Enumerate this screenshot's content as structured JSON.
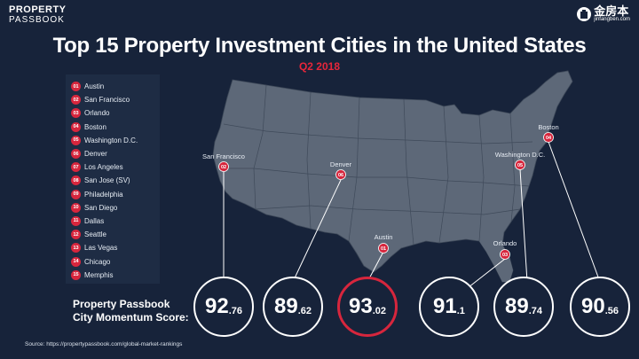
{
  "brand": {
    "line1": "PROPERTY",
    "line2": "PASSBOOK"
  },
  "partner": {
    "name": "金房本",
    "url": "jinfangben.com",
    "icon": "building-icon"
  },
  "title": "Top 15 Property Investment Cities in the United States",
  "subtitle": "Q2 2018",
  "legend": [
    {
      "num": "01",
      "city": "Austin"
    },
    {
      "num": "02",
      "city": "San Francisco"
    },
    {
      "num": "03",
      "city": "Orlando"
    },
    {
      "num": "04",
      "city": "Boston"
    },
    {
      "num": "05",
      "city": "Washington D.C."
    },
    {
      "num": "06",
      "city": "Denver"
    },
    {
      "num": "07",
      "city": "Los Angeles"
    },
    {
      "num": "08",
      "city": "San Jose (SV)"
    },
    {
      "num": "09",
      "city": "Philadelphia"
    },
    {
      "num": "10",
      "city": "San Diego"
    },
    {
      "num": "11",
      "city": "Dallas"
    },
    {
      "num": "12",
      "city": "Seattle"
    },
    {
      "num": "13",
      "city": "Las Vegas"
    },
    {
      "num": "14",
      "city": "Chicago"
    },
    {
      "num": "15",
      "city": "Memphis"
    }
  ],
  "pins": [
    {
      "num": "02",
      "label": "San Francisco"
    },
    {
      "num": "06",
      "label": "Denver"
    },
    {
      "num": "01",
      "label": "Austin"
    },
    {
      "num": "03",
      "label": "Orlando"
    },
    {
      "num": "05",
      "label": "Washington D.C."
    },
    {
      "num": "04",
      "label": "Boston"
    }
  ],
  "score_label": {
    "line1": "Property Passbook",
    "line2": "City Momentum Score:"
  },
  "scores": [
    {
      "int": "92",
      "dec": ".76"
    },
    {
      "int": "89",
      "dec": ".62"
    },
    {
      "int": "93",
      "dec": ".02"
    },
    {
      "int": "91",
      "dec": ".1"
    },
    {
      "int": "89",
      "dec": ".74"
    },
    {
      "int": "90",
      "dec": ".56"
    }
  ],
  "source": "Source: https://propertypassbook.com/global-market-rankings",
  "colors": {
    "background": "#17233a",
    "map": "#5d6878",
    "accent": "#d7263d"
  }
}
